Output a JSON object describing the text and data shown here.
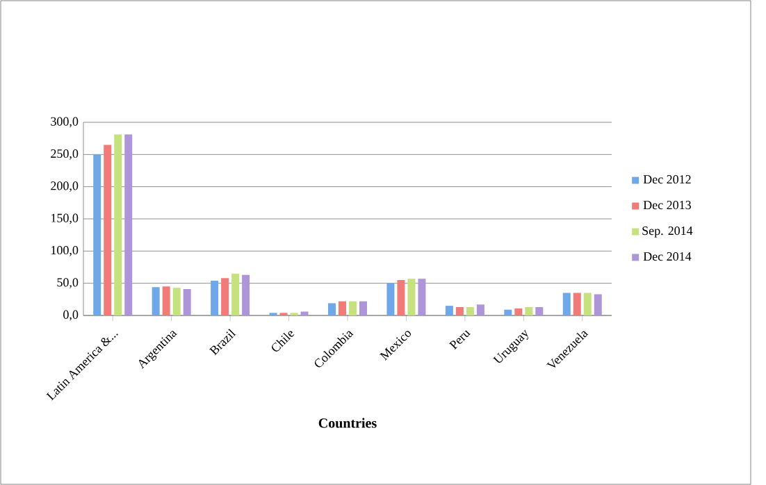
{
  "chart_data": {
    "type": "bar",
    "xlabel": "Countries",
    "categories": [
      "Latin America &...",
      "Argentina",
      "Brazil",
      "Chile",
      "Colombia",
      "Mexico",
      "Peru",
      "Uruguay",
      "Venezuela"
    ],
    "series": [
      {
        "name": "Dec 2012",
        "color": "#6fa8e8",
        "values": [
          250,
          44,
          54,
          4,
          19,
          50,
          15,
          9,
          35
        ]
      },
      {
        "name": "Dec 2013",
        "color": "#f07b78",
        "values": [
          265,
          45,
          58,
          4,
          22,
          55,
          13,
          11,
          35
        ]
      },
      {
        "name": "Sep. 2014",
        "color": "#c5e27e",
        "values": [
          281,
          43,
          65,
          4,
          22,
          57,
          13,
          13,
          35
        ]
      },
      {
        "name": "Dec 2014",
        "color": "#ad95d8",
        "values": [
          281,
          41,
          63,
          6,
          22,
          57,
          17,
          13,
          33
        ]
      }
    ],
    "ylim": [
      0,
      300
    ],
    "yticks": [
      {
        "value": 0,
        "label": "0,0"
      },
      {
        "value": 50,
        "label": "50,0"
      },
      {
        "value": 100,
        "label": "100,0"
      },
      {
        "value": 150,
        "label": "150,0"
      },
      {
        "value": 200,
        "label": "200,0"
      },
      {
        "value": 250,
        "label": "250,0"
      },
      {
        "value": 300,
        "label": "300,0"
      }
    ],
    "grid": "y",
    "legend": "right"
  }
}
